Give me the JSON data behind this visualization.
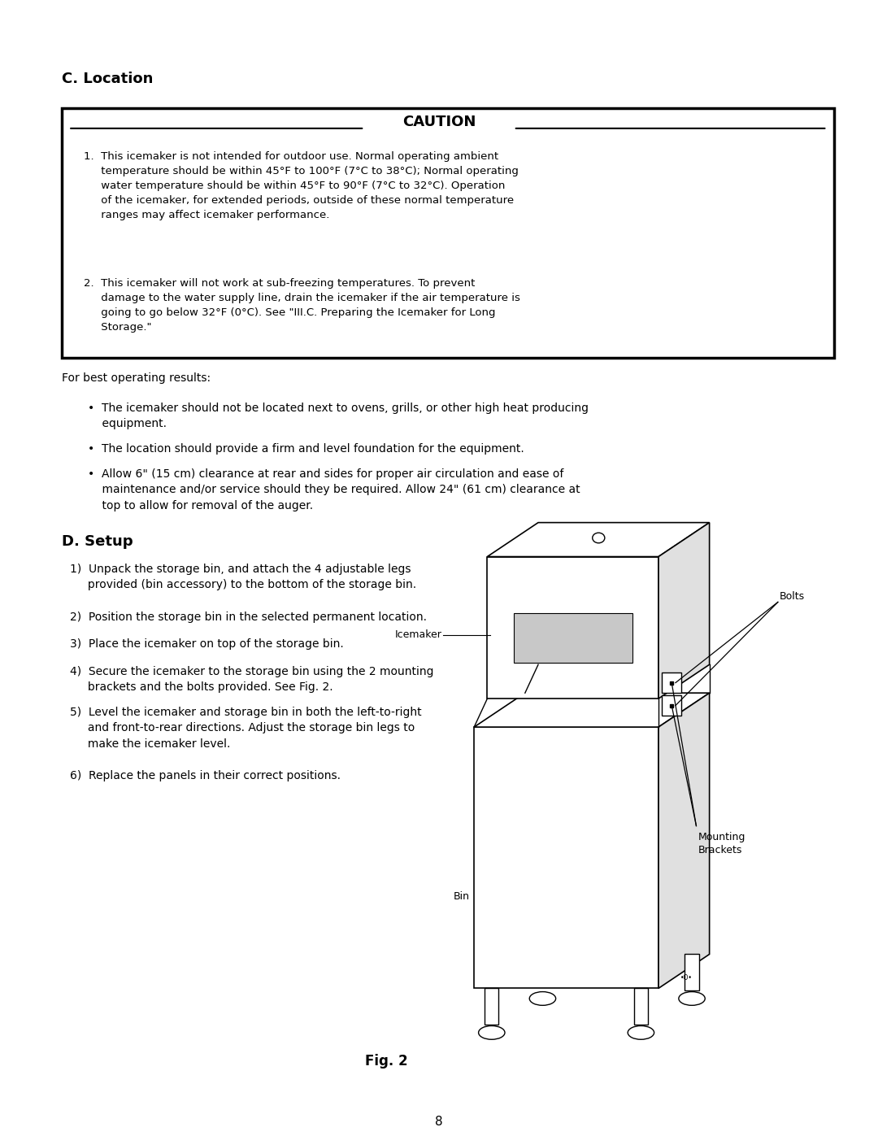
{
  "page_width": 10.8,
  "page_height": 13.97,
  "bg_color": "#ffffff",
  "section_c_title": "C. Location",
  "caution_title": "CAUTION",
  "for_best": "For best operating results:",
  "section_d_title": "D. Setup",
  "fig_caption": "Fig. 2",
  "page_num": "8",
  "label_icemaker": "Icemaker",
  "label_bolts": "Bolts",
  "label_bin": "Bin",
  "label_mounting": "Mounting\nBrackets"
}
